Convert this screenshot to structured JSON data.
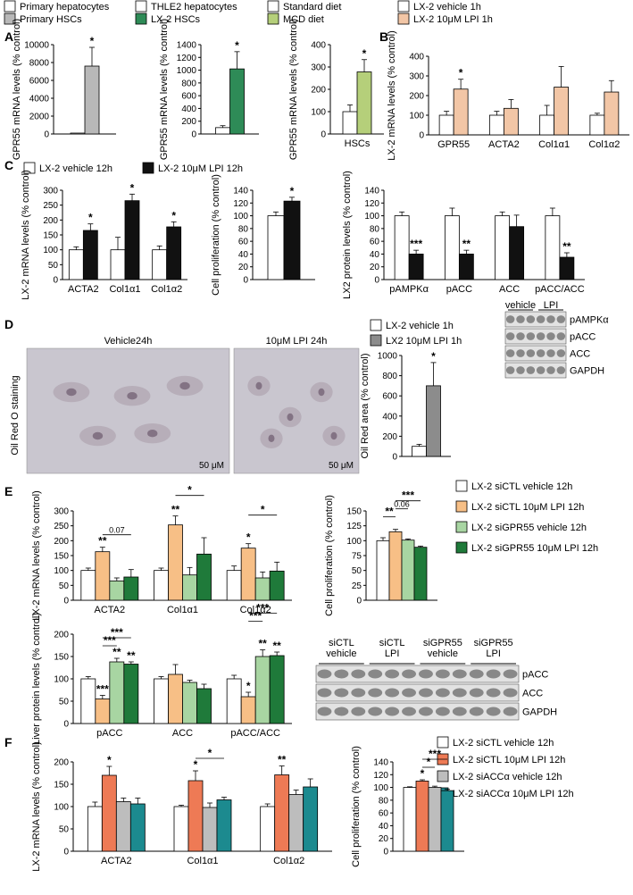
{
  "colors": {
    "white": "#ffffff",
    "grey_light": "#b8b8b8",
    "green_dark": "#2e8b57",
    "green_light": "#b5cf7a",
    "peach": "#f2c6a6",
    "black": "#111111",
    "grey_mid": "#8c8c8c",
    "peach_E": "#f7bf86",
    "green_E": "#a8d5a2",
    "green_E_dark": "#1f7a3a",
    "orange_F": "#ee7a55",
    "grey_F": "#bdbdbd",
    "teal_F": "#1c8a8f"
  },
  "legends": {
    "top": [
      {
        "label": "Primary hepatocytes",
        "color": "white"
      },
      {
        "label": "THLE2 hepatocytes",
        "color": "white"
      },
      {
        "label": "Standard diet",
        "color": "white"
      },
      {
        "label": "LX-2 vehicle 1h",
        "color": "white"
      },
      {
        "label": "Primary HSCs",
        "color": "grey_light"
      },
      {
        "label": "LX-2 HSCs",
        "color": "green_dark"
      },
      {
        "label": "MCD diet",
        "color": "green_light"
      },
      {
        "label": "LX-2 10μM LPI 1h",
        "color": "peach"
      }
    ],
    "C": [
      {
        "label": "LX-2 vehicle 12h",
        "color": "white"
      },
      {
        "label": "LX-2 10μM LPI 12h",
        "color": "black"
      }
    ],
    "D": [
      {
        "label": "LX-2 vehicle 1h",
        "color": "white"
      },
      {
        "label": "LX2 10μM LPI 1h",
        "color": "grey_mid"
      }
    ],
    "E": [
      {
        "label": "LX-2 siCTL vehicle 12h",
        "color": "white"
      },
      {
        "label": "LX-2 siCTL 10μM LPI 12h",
        "color": "peach_E"
      },
      {
        "label": "LX-2 siGPR55 vehicle 12h",
        "color": "green_E"
      },
      {
        "label": "LX-2 siGPR55 10μM LPI 12h",
        "color": "green_E_dark"
      }
    ],
    "F": [
      {
        "label": "LX-2 siCTL vehicle 12h",
        "color": "white"
      },
      {
        "label": "LX-2 siCTL 10μM LPI 12h",
        "color": "orange_F"
      },
      {
        "label": "LX-2 siACCα vehicle 12h",
        "color": "grey_F"
      },
      {
        "label": "LX-2 siACCα 10μM LPI 12h",
        "color": "teal_F"
      }
    ]
  },
  "panel_letters": [
    "A",
    "B",
    "C",
    "D",
    "E",
    "F"
  ],
  "microscopy": {
    "ylabel": "Oil Red O staining",
    "images": [
      {
        "title": "Vehicle24h",
        "scale": "50 μM"
      },
      {
        "title": "10μM LPI 24h",
        "scale": "50 μM"
      }
    ]
  },
  "blots": [
    {
      "id": "C",
      "header": [
        "vehicle",
        "LPI"
      ],
      "rows": [
        "pAMPKα",
        "pACC",
        "ACC",
        "GAPDH"
      ]
    },
    {
      "id": "E",
      "header": [
        "siCTL\nvehicle",
        "siCTL\nLPI",
        "siGPR55\nvehicle",
        "siGPR55\nLPI"
      ],
      "rows": [
        "pACC",
        "ACC",
        "GAPDH"
      ]
    }
  ],
  "chart_data": [
    {
      "id": "A1",
      "type": "bar",
      "ylabel": "GPR55 mRNA levels (% control)",
      "ylim": [
        0,
        10000
      ],
      "yticks": [
        0,
        2000,
        4000,
        6000,
        8000,
        10000
      ],
      "categories": [
        ""
      ],
      "series": [
        {
          "color": "white",
          "values": [
            100
          ],
          "err": [
            0
          ]
        },
        {
          "color": "grey_light",
          "values": [
            7600
          ],
          "err": [
            2100
          ]
        }
      ],
      "sig": [
        {
          "bar": [
            0,
            1
          ],
          "text": "*"
        }
      ]
    },
    {
      "id": "A2",
      "type": "bar",
      "ylabel": "GPR55 mRNA levels (% control)",
      "ylim": [
        0,
        1400
      ],
      "yticks": [
        0,
        200,
        400,
        600,
        800,
        1000,
        1200,
        1400
      ],
      "categories": [
        ""
      ],
      "series": [
        {
          "color": "white",
          "values": [
            100
          ],
          "err": [
            30
          ]
        },
        {
          "color": "green_dark",
          "values": [
            1020
          ],
          "err": [
            270
          ]
        }
      ],
      "sig": [
        {
          "bar": [
            0,
            1
          ],
          "text": "*"
        }
      ]
    },
    {
      "id": "A3",
      "type": "bar",
      "ylabel": "GPR55 mRNA levels (% control)",
      "ylim": [
        0,
        400
      ],
      "yticks": [
        0,
        100,
        200,
        300,
        400
      ],
      "categories": [
        "HSCs"
      ],
      "series": [
        {
          "color": "white",
          "values": [
            100
          ],
          "err": [
            30
          ]
        },
        {
          "color": "green_light",
          "values": [
            278
          ],
          "err": [
            55
          ]
        }
      ],
      "sig": [
        {
          "bar": [
            0,
            1
          ],
          "text": "*"
        }
      ]
    },
    {
      "id": "B",
      "type": "bar",
      "ylabel": "LX-2 mRNA levels (% control)",
      "ylim": [
        0,
        400
      ],
      "yticks": [
        0,
        100,
        200,
        300,
        400
      ],
      "categories": [
        "GPR55",
        "ACTA2",
        "Col1α1",
        "Col1α2"
      ],
      "series": [
        {
          "color": "white",
          "values": [
            100,
            100,
            100,
            100
          ],
          "err": [
            20,
            20,
            50,
            10
          ]
        },
        {
          "color": "peach",
          "values": [
            233,
            135,
            243,
            218
          ],
          "err": [
            50,
            45,
            105,
            58
          ]
        }
      ],
      "sig": [
        {
          "bar": [
            0,
            1
          ],
          "text": "*"
        }
      ]
    },
    {
      "id": "C1",
      "type": "bar",
      "ylabel": "LX-2 mRNA levels (% control)",
      "ylim": [
        0,
        300
      ],
      "yticks": [
        0,
        50,
        100,
        150,
        200,
        250,
        300
      ],
      "categories": [
        "ACTA2",
        "Col1α1",
        "Col1α2"
      ],
      "series": [
        {
          "color": "white",
          "values": [
            100,
            100,
            100
          ],
          "err": [
            10,
            42,
            13
          ]
        },
        {
          "color": "black",
          "values": [
            165,
            265,
            177
          ],
          "err": [
            22,
            22,
            17
          ]
        }
      ],
      "sig": [
        {
          "bar": [
            0,
            1
          ],
          "text": "*"
        },
        {
          "bar": [
            1,
            1
          ],
          "text": "*"
        },
        {
          "bar": [
            2,
            1
          ],
          "text": "*"
        }
      ]
    },
    {
      "id": "C2",
      "type": "bar",
      "ylabel": "Cell proliferation (% control)",
      "ylim": [
        0,
        140
      ],
      "yticks": [
        0,
        20,
        40,
        60,
        80,
        100,
        120,
        140
      ],
      "categories": [
        ""
      ],
      "series": [
        {
          "color": "white",
          "values": [
            100
          ],
          "err": [
            6
          ]
        },
        {
          "color": "black",
          "values": [
            123
          ],
          "err": [
            6
          ]
        }
      ],
      "sig": [
        {
          "bar": [
            0,
            1
          ],
          "text": "*"
        }
      ]
    },
    {
      "id": "C3",
      "type": "bar",
      "ylabel": "LX2 protein levels (% control)",
      "ylim": [
        0,
        140
      ],
      "yticks": [
        0,
        20,
        40,
        60,
        80,
        100,
        120,
        140
      ],
      "categories": [
        "pAMPKα",
        "pACC",
        "ACC",
        "pACC/ACC"
      ],
      "series": [
        {
          "color": "white",
          "values": [
            100,
            100,
            100,
            100
          ],
          "err": [
            6,
            12,
            6,
            12
          ]
        },
        {
          "color": "black",
          "values": [
            40,
            40,
            83,
            35
          ],
          "err": [
            6,
            6,
            18,
            7
          ]
        }
      ],
      "sig": [
        {
          "bar": [
            0,
            1
          ],
          "text": "***"
        },
        {
          "bar": [
            1,
            1
          ],
          "text": "**"
        },
        {
          "bar": [
            3,
            1
          ],
          "text": "**"
        }
      ]
    },
    {
      "id": "D1",
      "type": "bar",
      "ylabel": "Oil Red area (% control)",
      "ylim": [
        0,
        1000
      ],
      "yticks": [
        0,
        200,
        400,
        600,
        800,
        1000
      ],
      "categories": [
        ""
      ],
      "series": [
        {
          "color": "white",
          "values": [
            100
          ],
          "err": [
            20
          ]
        },
        {
          "color": "grey_mid",
          "values": [
            700
          ],
          "err": [
            230
          ]
        }
      ],
      "sig": [
        {
          "bar": [
            0,
            1
          ],
          "text": "*"
        }
      ]
    },
    {
      "id": "E1",
      "type": "bar",
      "ylabel": "LX-2 mRNA levels (% control)",
      "ylim": [
        0,
        300
      ],
      "yticks": [
        0,
        50,
        100,
        150,
        200,
        250,
        300
      ],
      "categories": [
        "ACTA2",
        "Col1α1",
        "Col1α2"
      ],
      "series": [
        {
          "color": "white",
          "values": [
            100,
            100,
            100
          ],
          "err": [
            8,
            8,
            15
          ]
        },
        {
          "color": "peach_E",
          "values": [
            163,
            253,
            175
          ],
          "err": [
            15,
            30,
            15
          ]
        },
        {
          "color": "green_E",
          "values": [
            65,
            85,
            75
          ],
          "err": [
            10,
            25,
            20
          ]
        },
        {
          "color": "green_E_dark",
          "values": [
            78,
            155,
            98
          ],
          "err": [
            25,
            55,
            30
          ]
        }
      ],
      "sig": [
        {
          "bar": [
            0,
            1
          ],
          "text": "**"
        },
        {
          "bar": [
            1,
            1
          ],
          "text": "**"
        },
        {
          "bar": [
            2,
            1
          ],
          "text": "*"
        }
      ],
      "brackets": [
        {
          "group": 0,
          "from": 1,
          "to": 3,
          "text": "0.07"
        },
        {
          "group": 1,
          "from": 1,
          "to": 3,
          "text": "*"
        },
        {
          "group": 2,
          "from": 1,
          "to": 3,
          "text": "*"
        }
      ]
    },
    {
      "id": "E2",
      "type": "bar",
      "ylabel": "Cell proliferation (% control)",
      "ylim": [
        0,
        150
      ],
      "yticks": [
        0,
        25,
        50,
        75,
        100,
        125,
        150
      ],
      "categories": [
        ""
      ],
      "series": [
        {
          "color": "white",
          "values": [
            100
          ],
          "err": [
            5
          ]
        },
        {
          "color": "peach_E",
          "values": [
            115
          ],
          "err": [
            4
          ]
        },
        {
          "color": "green_E",
          "values": [
            101
          ],
          "err": [
            2
          ]
        },
        {
          "color": "green_E_dark",
          "values": [
            89
          ],
          "err": [
            2
          ]
        }
      ],
      "brackets": [
        {
          "group": 0,
          "from": 0,
          "to": 1,
          "text": "**"
        },
        {
          "group": 0,
          "from": 1,
          "to": 2,
          "text": "0.06"
        },
        {
          "group": 0,
          "from": 1,
          "to": 3,
          "text": "***"
        }
      ]
    },
    {
      "id": "E3",
      "type": "bar",
      "ylabel": "Liver protein levels (% control)",
      "ylim": [
        0,
        200
      ],
      "yticks": [
        0,
        50,
        100,
        150,
        200
      ],
      "categories": [
        "pACC",
        "ACC",
        "pACC/ACC"
      ],
      "series": [
        {
          "color": "white",
          "values": [
            100,
            100,
            100
          ],
          "err": [
            5,
            5,
            8
          ]
        },
        {
          "color": "peach_E",
          "values": [
            55,
            110,
            60
          ],
          "err": [
            8,
            22,
            10
          ]
        },
        {
          "color": "green_E",
          "values": [
            138,
            92,
            150
          ],
          "err": [
            8,
            5,
            15
          ]
        },
        {
          "color": "green_E_dark",
          "values": [
            133,
            78,
            152
          ],
          "err": [
            5,
            10,
            8
          ]
        }
      ],
      "sig": [
        {
          "bar": [
            0,
            1
          ],
          "text": "***"
        },
        {
          "bar": [
            0,
            2
          ],
          "text": "**"
        },
        {
          "bar": [
            0,
            3
          ],
          "text": "**"
        },
        {
          "bar": [
            2,
            1
          ],
          "text": "*"
        },
        {
          "bar": [
            2,
            2
          ],
          "text": "**"
        },
        {
          "bar": [
            2,
            3
          ],
          "text": "**"
        }
      ],
      "brackets": [
        {
          "group": 0,
          "from": 1,
          "to": 2,
          "text": "***"
        },
        {
          "group": 0,
          "from": 1,
          "to": 3,
          "text": "***"
        },
        {
          "group": 2,
          "from": 1,
          "to": 2,
          "text": "***"
        },
        {
          "group": 2,
          "from": 1,
          "to": 3,
          "text": "***"
        }
      ]
    },
    {
      "id": "F1",
      "type": "bar",
      "ylabel": "LX-2 mRNA levels (% control)",
      "ylim": [
        0,
        200
      ],
      "yticks": [
        0,
        50,
        100,
        150,
        200
      ],
      "categories": [
        "ACTA2",
        "Col1α1",
        "Col1α2"
      ],
      "series": [
        {
          "color": "white",
          "values": [
            100,
            100,
            100
          ],
          "err": [
            10,
            3,
            6
          ]
        },
        {
          "color": "orange_F",
          "values": [
            170,
            158,
            171
          ],
          "err": [
            20,
            22,
            20
          ]
        },
        {
          "color": "grey_F",
          "values": [
            111,
            98,
            127
          ],
          "err": [
            8,
            10,
            10
          ]
        },
        {
          "color": "teal_F",
          "values": [
            106,
            115,
            144
          ],
          "err": [
            13,
            6,
            18
          ]
        }
      ],
      "sig": [
        {
          "bar": [
            0,
            1
          ],
          "text": "*"
        },
        {
          "bar": [
            1,
            1
          ],
          "text": "*"
        },
        {
          "bar": [
            2,
            1
          ],
          "text": "**"
        }
      ],
      "brackets": [
        {
          "group": 1,
          "from": 1,
          "to": 3,
          "text": "*"
        }
      ]
    },
    {
      "id": "F2",
      "type": "bar",
      "ylabel": "Cell proliferation (% control)",
      "ylim": [
        0,
        140
      ],
      "yticks": [
        0,
        20,
        40,
        60,
        80,
        100,
        120,
        140
      ],
      "categories": [
        ""
      ],
      "series": [
        {
          "color": "white",
          "values": [
            100
          ],
          "err": [
            1
          ]
        },
        {
          "color": "orange_F",
          "values": [
            110
          ],
          "err": [
            2
          ]
        },
        {
          "color": "grey_F",
          "values": [
            100
          ],
          "err": [
            2
          ]
        },
        {
          "color": "teal_F",
          "values": [
            95
          ],
          "err": [
            2
          ]
        }
      ],
      "sig": [
        {
          "bar": [
            0,
            1
          ],
          "text": "*"
        }
      ],
      "brackets": [
        {
          "group": 0,
          "from": 1,
          "to": 2,
          "text": "*"
        },
        {
          "group": 0,
          "from": 1,
          "to": 3,
          "text": "***"
        }
      ]
    }
  ]
}
